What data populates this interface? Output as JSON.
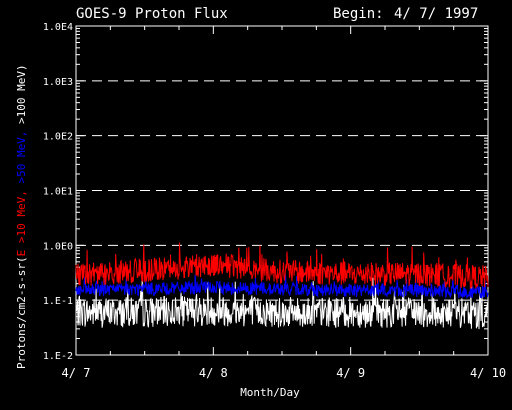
{
  "header": {
    "title": "GOES-9 Proton Flux",
    "begin_label": "Begin:",
    "begin_date": "4/ 7/ 1997"
  },
  "axes": {
    "xlabel": "Month/Day",
    "ylabel_prefix": "Protons/cm2-s-sr(",
    "ylabel_red": "E >10 MeV,",
    "ylabel_blue": " >50 MeV,",
    "ylabel_white": " >100 MeV",
    "ylabel_suffix": ")"
  },
  "colors": {
    "background": "#000000",
    "grid": "#ffffff",
    "red": "#ff0000",
    "blue": "#0000ff",
    "white": "#ffffff"
  },
  "chart_data": {
    "type": "line",
    "y_scale": "log",
    "ylim": [
      0.01,
      10000
    ],
    "y_ticks": [
      "1.E-2",
      "1.E-1",
      "1.0E0",
      "1.0E1",
      "1.0E2",
      "1.0E3",
      "1.0E4"
    ],
    "x_ticks": [
      "4/ 7",
      "4/ 8",
      "4/ 9",
      "4/ 10"
    ],
    "xlim": [
      "1997-04-07",
      "1997-04-10"
    ],
    "grid": "dashed horizontal at each decade",
    "series": [
      {
        "name": ">10 MeV",
        "color": "#ff0000",
        "x": [
          "1997-04-07",
          "1997-04-07 12:00",
          "1997-04-08",
          "1997-04-08 12:00",
          "1997-04-09",
          "1997-04-09 12:00",
          "1997-04-10"
        ],
        "values": [
          0.28,
          0.34,
          0.45,
          0.33,
          0.3,
          0.3,
          0.26
        ]
      },
      {
        "name": ">50 MeV",
        "color": "#0000ff",
        "x": [
          "1997-04-07",
          "1997-04-07 12:00",
          "1997-04-08",
          "1997-04-08 12:00",
          "1997-04-09",
          "1997-04-09 12:00",
          "1997-04-10"
        ],
        "values": [
          0.15,
          0.16,
          0.17,
          0.16,
          0.15,
          0.15,
          0.14
        ]
      },
      {
        "name": ">100 MeV",
        "color": "#ffffff",
        "x": [
          "1997-04-07",
          "1997-04-07 12:00",
          "1997-04-08",
          "1997-04-08 12:00",
          "1997-04-09",
          "1997-04-09 12:00",
          "1997-04-10"
        ],
        "values": [
          0.06,
          0.06,
          0.065,
          0.06,
          0.06,
          0.06,
          0.055
        ]
      }
    ]
  }
}
